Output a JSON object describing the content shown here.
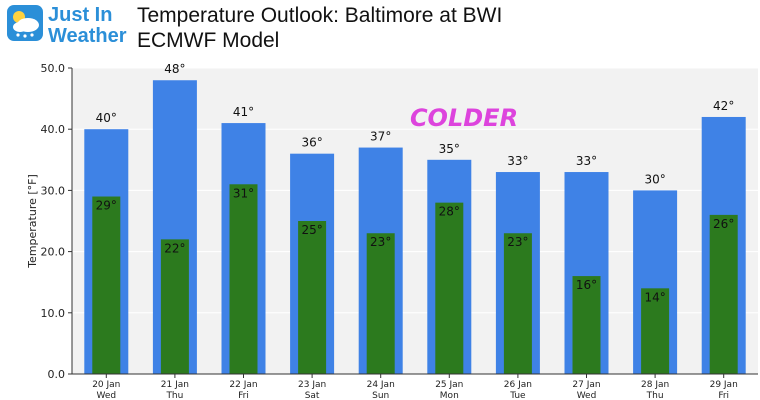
{
  "branding": {
    "logo_line1": "Just In",
    "logo_line2": "Weather"
  },
  "header": {
    "title_line1": "Temperature Outlook: Baltimore at BWI",
    "title_line2": "ECMWF Model"
  },
  "chart_data": {
    "type": "bar",
    "ylabel": "Temperature [°F]",
    "ylim": [
      0,
      50
    ],
    "yticks": [
      "0.0",
      "10.0",
      "20.0",
      "30.0",
      "40.0",
      "50.0"
    ],
    "annotation": "COLDER",
    "grid": true,
    "categories": [
      {
        "date": "20 Jan",
        "day": "Wed"
      },
      {
        "date": "21 Jan",
        "day": "Thu"
      },
      {
        "date": "22 Jan",
        "day": "Fri"
      },
      {
        "date": "23 Jan",
        "day": "Sat"
      },
      {
        "date": "24 Jan",
        "day": "Sun"
      },
      {
        "date": "25 Jan",
        "day": "Mon"
      },
      {
        "date": "26 Jan",
        "day": "Tue"
      },
      {
        "date": "27 Jan",
        "day": "Wed"
      },
      {
        "date": "28 Jan",
        "day": "Thu"
      },
      {
        "date": "29 Jan",
        "day": "Fri"
      }
    ],
    "series": [
      {
        "key": "high",
        "values": [
          40,
          48,
          41,
          36,
          37,
          35,
          33,
          33,
          30,
          42
        ],
        "labels": [
          "40°",
          "48°",
          "41°",
          "36°",
          "37°",
          "35°",
          "33°",
          "33°",
          "30°",
          "42°"
        ],
        "color": "#3f82e6"
      },
      {
        "key": "low",
        "values": [
          29,
          22,
          31,
          25,
          23,
          28,
          23,
          16,
          14,
          26
        ],
        "labels": [
          "29°",
          "22°",
          "31°",
          "25°",
          "23°",
          "28°",
          "23°",
          "16°",
          "14°",
          "26°"
        ],
        "color": "#2c7a1e"
      }
    ],
    "colors": {
      "plot_background": "#f2f2f2",
      "annotation": "#dd44dd"
    }
  }
}
